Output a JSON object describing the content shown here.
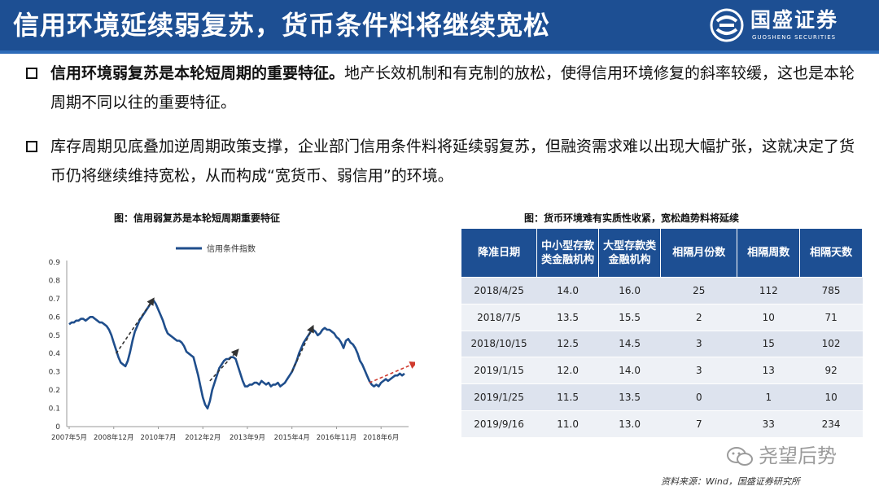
{
  "header": {
    "title": "信用环境延续弱复苏，货币条件料将继续宽松",
    "logo_text": "国盛证券",
    "logo_sub": "GUOSHENG SECURITIES",
    "bg_color": "#1d4f93"
  },
  "bullets": [
    {
      "strong": "信用环境弱复苏是本轮短周期的重要特征。",
      "text": "地产长效机制和有克制的放松，使得信用环境修复的斜率较缓，这也是本轮周期不同以往的重要特征。"
    },
    {
      "strong": "",
      "text": "库存周期见底叠加逆周期政策支撑，企业部门信用条件料将延续弱复苏，但融资需求难以出现大幅扩张，这就决定了货币仍将继续维持宽松，从而构成“宽货币、弱信用”的环境。"
    }
  ],
  "chart": {
    "caption": "图：信用弱复苏是本轮短周期重要特征"
  },
  "chart_data": {
    "type": "line",
    "title": "图：信用弱复苏是本轮短周期重要特征",
    "xlabel": "",
    "ylabel": "",
    "ylim": [
      0,
      0.9
    ],
    "yticks": [
      "0",
      "0.1",
      "0.2",
      "0.3",
      "0.4",
      "0.5",
      "0.6",
      "0.7",
      "0.8",
      "0.9"
    ],
    "xticks": [
      "2007年5月",
      "2008年12月",
      "2010年7月",
      "2012年2月",
      "2013年9月",
      "2015年4月",
      "2016年11月",
      "2018年6月"
    ],
    "xtick_index": [
      0,
      19,
      38,
      57,
      76,
      95,
      114,
      133
    ],
    "legend": "top-left",
    "grid": false,
    "series": [
      {
        "name": "信用条件指数",
        "color": "#1f4e8c",
        "values": [
          0.56,
          0.57,
          0.57,
          0.58,
          0.58,
          0.59,
          0.59,
          0.58,
          0.59,
          0.6,
          0.6,
          0.59,
          0.58,
          0.57,
          0.57,
          0.56,
          0.55,
          0.53,
          0.5,
          0.46,
          0.42,
          0.38,
          0.35,
          0.34,
          0.33,
          0.36,
          0.41,
          0.47,
          0.52,
          0.55,
          0.58,
          0.6,
          0.62,
          0.64,
          0.66,
          0.68,
          0.69,
          0.67,
          0.64,
          0.61,
          0.58,
          0.54,
          0.51,
          0.5,
          0.49,
          0.48,
          0.47,
          0.47,
          0.46,
          0.44,
          0.41,
          0.4,
          0.39,
          0.38,
          0.33,
          0.28,
          0.22,
          0.16,
          0.12,
          0.1,
          0.14,
          0.2,
          0.24,
          0.28,
          0.32,
          0.34,
          0.36,
          0.37,
          0.37,
          0.38,
          0.38,
          0.37,
          0.33,
          0.29,
          0.25,
          0.22,
          0.22,
          0.23,
          0.23,
          0.24,
          0.24,
          0.23,
          0.25,
          0.24,
          0.23,
          0.24,
          0.22,
          0.23,
          0.23,
          0.24,
          0.22,
          0.23,
          0.24,
          0.26,
          0.28,
          0.3,
          0.33,
          0.36,
          0.4,
          0.43,
          0.46,
          0.48,
          0.5,
          0.52,
          0.53,
          0.52,
          0.5,
          0.51,
          0.53,
          0.54,
          0.53,
          0.53,
          0.52,
          0.51,
          0.49,
          0.48,
          0.46,
          0.43,
          0.47,
          0.48,
          0.46,
          0.45,
          0.43,
          0.4,
          0.36,
          0.34,
          0.31,
          0.28,
          0.25,
          0.23,
          0.22,
          0.23,
          0.22,
          0.24,
          0.25,
          0.26,
          0.25,
          0.26,
          0.27,
          0.28,
          0.28,
          0.29,
          0.28,
          0.29
        ]
      }
    ],
    "trend_arrows": [
      {
        "from": [
          20,
          0.4
        ],
        "to": [
          36,
          0.7
        ],
        "color": "#333333",
        "style": "dashed"
      },
      {
        "from": [
          60,
          0.25
        ],
        "to": [
          72,
          0.42
        ],
        "color": "#333333",
        "style": "dashed"
      },
      {
        "from": [
          95,
          0.3
        ],
        "to": [
          104,
          0.55
        ],
        "color": "#333333",
        "style": "dashed"
      },
      {
        "from": [
          128,
          0.24
        ],
        "to": [
          148,
          0.35
        ],
        "color": "#d03a2e",
        "style": "dashed"
      }
    ]
  },
  "table": {
    "caption": "图：货币环境难有实质性收紧，宽松趋势料将延续",
    "headers": [
      "降准日期",
      "中小型存款类金融机构",
      "大型存款类金融机构",
      "相隔月份数",
      "相隔周数",
      "相隔天数"
    ],
    "rows": [
      [
        "2018/4/25",
        "14.0",
        "16.0",
        "25",
        "112",
        "785"
      ],
      [
        "2018/7/5",
        "13.5",
        "15.5",
        "2",
        "10",
        "71"
      ],
      [
        "2018/10/15",
        "12.5",
        "14.5",
        "3",
        "15",
        "102"
      ],
      [
        "2019/1/15",
        "12.0",
        "14.0",
        "3",
        "13",
        "92"
      ],
      [
        "2019/1/25",
        "11.5",
        "13.5",
        "0",
        "1",
        "10"
      ],
      [
        "2019/9/16",
        "11.0",
        "13.0",
        "7",
        "33",
        "234"
      ]
    ]
  },
  "watermark": {
    "text": "尧望后势"
  },
  "source": {
    "text": "资料来源：Wind，国盛证券研究所"
  }
}
